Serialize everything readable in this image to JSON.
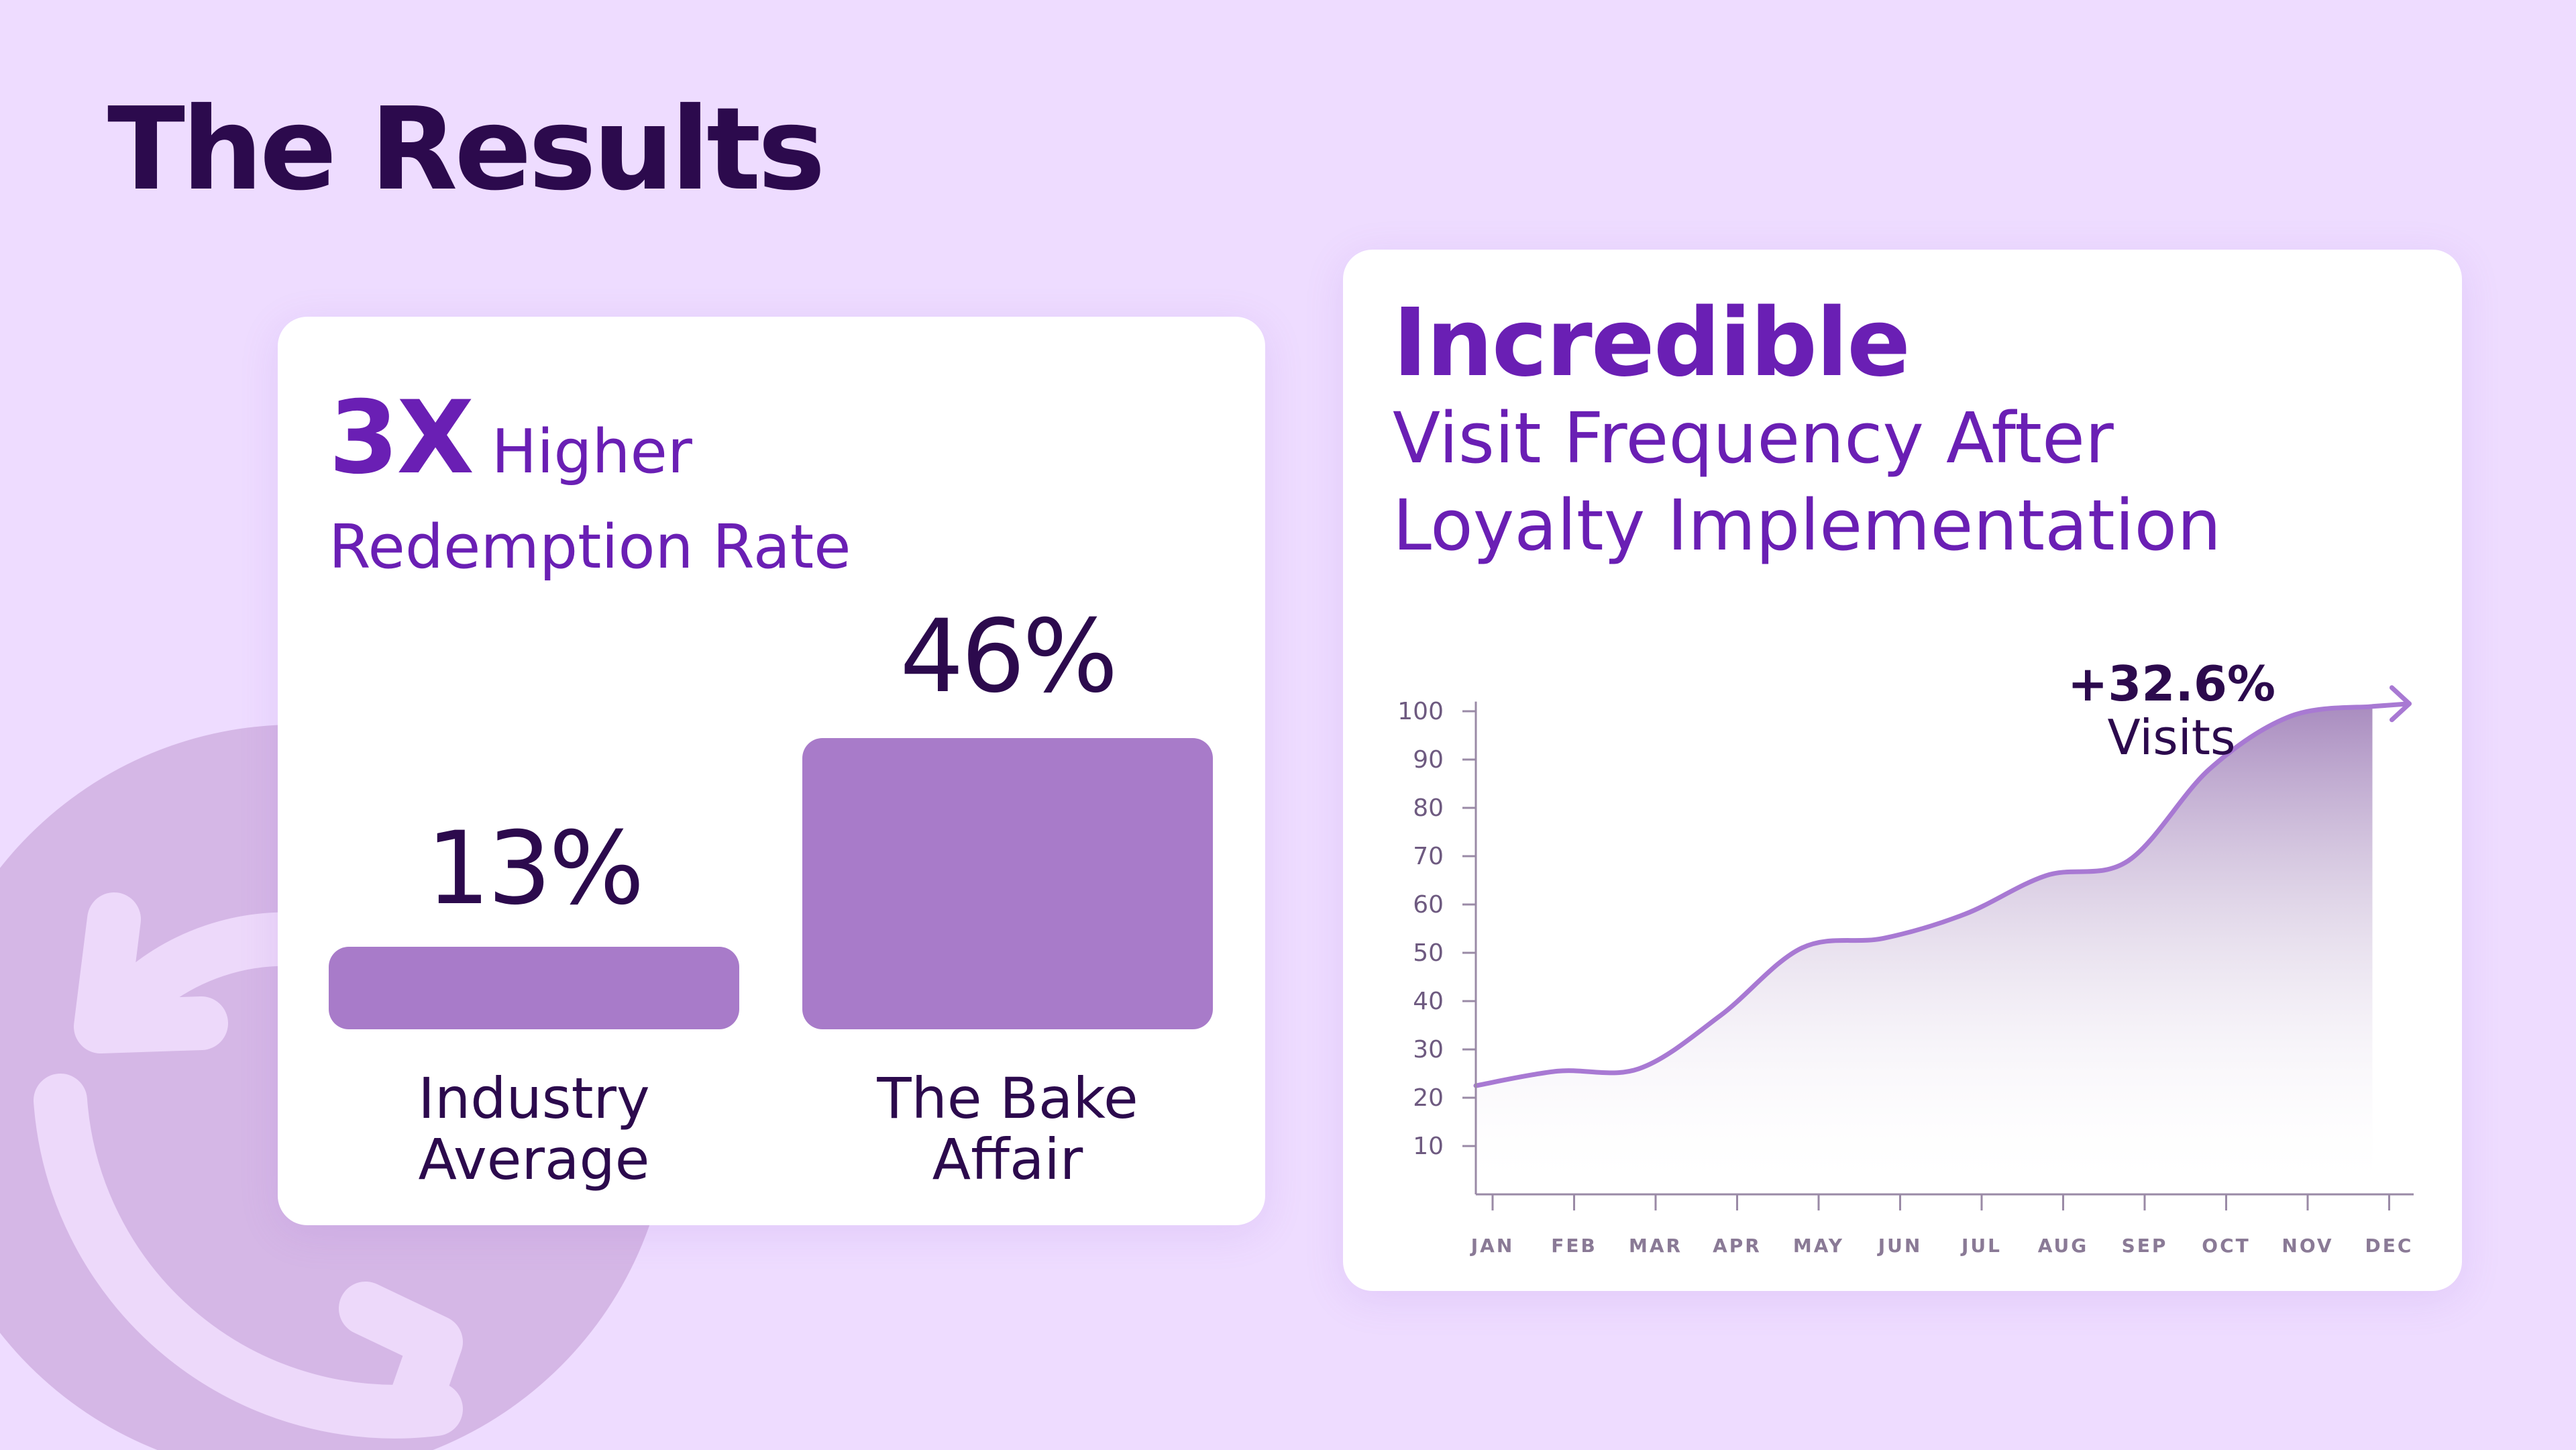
{
  "page": {
    "title": "The Results"
  },
  "colors": {
    "background": "#eedcff",
    "title": "#2c0a4d",
    "accent": "#6a1fb4",
    "bar": "#a87bc9",
    "line": "#a879d3",
    "decor_circle": "#d5b7e6",
    "decor_arrows": "#edd9fa"
  },
  "decor": {
    "icon": "refresh-arrows-icon"
  },
  "left_card": {
    "headline_big": "3X",
    "headline_rest": "Higher",
    "headline_line2": "Redemption Rate"
  },
  "right_card": {
    "headline_big": "Incredible",
    "headline_line2": "Visit Frequency After",
    "headline_line3": "Loyalty Implementation"
  },
  "chart_data": [
    {
      "type": "bar",
      "categories": [
        "Industry Average",
        "The Bake Affair"
      ],
      "category_lines": [
        [
          "Industry",
          "Average"
        ],
        [
          "The Bake",
          "Affair"
        ]
      ],
      "values": [
        13,
        46
      ],
      "value_labels": [
        "13%",
        "46%"
      ],
      "unit": "%",
      "grid": false,
      "axes_visible": false
    },
    {
      "type": "area",
      "categories": [
        "JAN",
        "FEB",
        "MAR",
        "APR",
        "MAY",
        "JUN",
        "JUL",
        "AUG",
        "SEP",
        "OCT",
        "NOV",
        "DEC"
      ],
      "values": [
        22.5,
        25.5,
        26,
        37,
        51,
        53,
        58,
        66,
        69,
        88,
        99,
        101
      ],
      "yticks": [
        10,
        20,
        30,
        40,
        50,
        60,
        70,
        80,
        90,
        100
      ],
      "ylim": [
        0,
        100
      ],
      "grid": false,
      "annotation": {
        "value": "+32.6%",
        "label": "Visits"
      }
    }
  ]
}
